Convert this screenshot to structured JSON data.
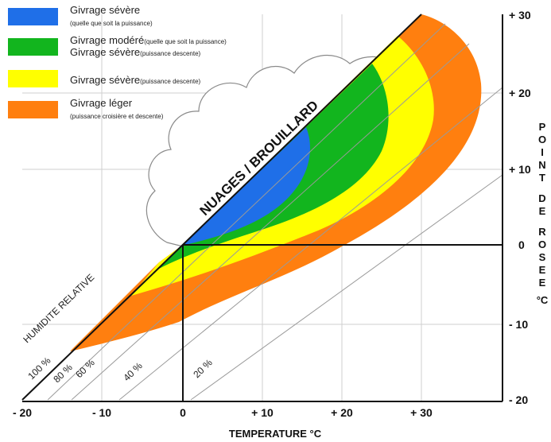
{
  "legend": [
    {
      "label": "Givrage sévère",
      "note": "",
      "sub": "(quelle que soit la puissance)",
      "color": "#1f6fe8"
    },
    {
      "label": "Givrage modéré",
      "note": "(quelle que soit la puissance)",
      "label2": "Givrage sévère",
      "note2": "(puissance descente)",
      "color": "#12b51e"
    },
    {
      "label": "Givrage sévère",
      "note": "(puissance descente)",
      "color": "#ffff00"
    },
    {
      "label": "Givrage léger",
      "sub": "(puissance croisière et descente)",
      "color": "#ff7f0f"
    }
  ],
  "cloud_label": "NUAGES / BROUILLARD",
  "humidity_title": "HUMIDITE RELATIVE",
  "humidity_lines": [
    "100 %",
    "80 %",
    "60 %",
    "40 %",
    "20 %"
  ],
  "x_axis": {
    "title": "TEMPERATURE °C",
    "ticks": [
      "- 20",
      "- 10",
      "0",
      "+ 10",
      "+ 20",
      "+ 30"
    ],
    "range": [
      -20,
      40
    ]
  },
  "y_axis": {
    "title_letters": [
      "P",
      "O",
      "I",
      "N",
      "T",
      " ",
      "D",
      "E",
      " ",
      "R",
      "O",
      "S",
      "E",
      "E"
    ],
    "unit": "°C",
    "ticks": [
      "+ 30",
      "+ 20",
      "+ 10",
      "0",
      "- 10",
      "- 20"
    ],
    "range": [
      -20,
      30
    ]
  },
  "reference_point": {
    "temperature": 0,
    "dew_point": 0
  }
}
